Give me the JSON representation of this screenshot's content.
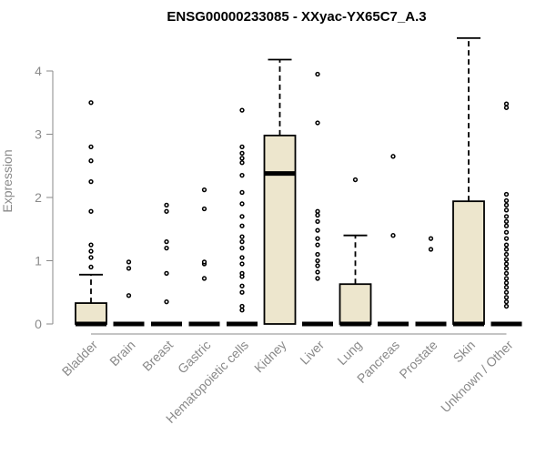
{
  "chart_data": {
    "type": "box",
    "title": "ENSG00000233085 - XXyac-YX65C7_A.3",
    "ylabel": "Expression",
    "xlabel": "",
    "ylim": [
      0,
      4.5
    ],
    "yticks": [
      0,
      1,
      2,
      3,
      4
    ],
    "categories": [
      "Bladder",
      "Brain",
      "Breast",
      "Gastric",
      "Hematopoietic cells",
      "Kidney",
      "Liver",
      "Lung",
      "Pancreas",
      "Prostate",
      "Skin",
      "Unknown / Other"
    ],
    "box_fill": "#ede6cd",
    "axis_color": "#8a8a8a",
    "boxes": [
      {
        "q1": 0,
        "median": 0,
        "q3": 0.33,
        "whisker_low": 0,
        "whisker_high": 0.78,
        "outliers": [
          0.9,
          1.05,
          1.15,
          1.25,
          1.78,
          2.25,
          2.58,
          2.8,
          3.5
        ]
      },
      {
        "q1": 0,
        "median": 0,
        "q3": 0,
        "whisker_low": 0,
        "whisker_high": 0,
        "outliers": [
          0.45,
          0.88,
          0.98
        ]
      },
      {
        "q1": 0,
        "median": 0,
        "q3": 0,
        "whisker_low": 0,
        "whisker_high": 0,
        "outliers": [
          0.35,
          0.8,
          1.2,
          1.3,
          1.78,
          1.88
        ]
      },
      {
        "q1": 0,
        "median": 0,
        "q3": 0,
        "whisker_low": 0,
        "whisker_high": 0,
        "outliers": [
          0.72,
          0.95,
          0.98,
          1.82,
          2.12
        ]
      },
      {
        "q1": 0,
        "median": 0,
        "q3": 0,
        "whisker_low": 0,
        "whisker_high": 0,
        "outliers": [
          0.22,
          0.28,
          0.5,
          0.6,
          0.75,
          0.8,
          0.95,
          1.05,
          1.2,
          1.3,
          1.38,
          1.55,
          1.7,
          1.9,
          2.08,
          2.35,
          2.55,
          2.62,
          2.7,
          2.8,
          3.38
        ]
      },
      {
        "q1": 0,
        "median": 2.38,
        "q3": 2.98,
        "whisker_low": 0,
        "whisker_high": 4.18,
        "outliers": []
      },
      {
        "q1": 0,
        "median": 0,
        "q3": 0,
        "whisker_low": 0,
        "whisker_high": 0,
        "outliers": [
          0.72,
          0.82,
          0.92,
          1.0,
          1.1,
          1.25,
          1.35,
          1.48,
          1.62,
          1.72,
          1.78,
          3.18,
          3.95
        ]
      },
      {
        "q1": 0,
        "median": 0,
        "q3": 0.63,
        "whisker_low": 0,
        "whisker_high": 1.4,
        "outliers": [
          2.28
        ]
      },
      {
        "q1": 0,
        "median": 0,
        "q3": 0,
        "whisker_low": 0,
        "whisker_high": 0,
        "outliers": [
          1.4,
          2.65
        ]
      },
      {
        "q1": 0,
        "median": 0,
        "q3": 0,
        "whisker_low": 0,
        "whisker_high": 0,
        "outliers": [
          1.18,
          1.35
        ]
      },
      {
        "q1": 0,
        "median": 0,
        "q3": 1.94,
        "whisker_low": 0,
        "whisker_high": 4.52,
        "outliers": []
      },
      {
        "q1": 0,
        "median": 0,
        "q3": 0,
        "whisker_low": 0,
        "whisker_high": 0,
        "outliers": [
          0.28,
          0.35,
          0.42,
          0.5,
          0.58,
          0.65,
          0.72,
          0.8,
          0.88,
          0.95,
          1.02,
          1.1,
          1.18,
          1.25,
          1.35,
          1.45,
          1.55,
          1.62,
          1.7,
          1.8,
          1.88,
          1.95,
          2.05,
          3.42,
          3.48
        ]
      }
    ]
  }
}
